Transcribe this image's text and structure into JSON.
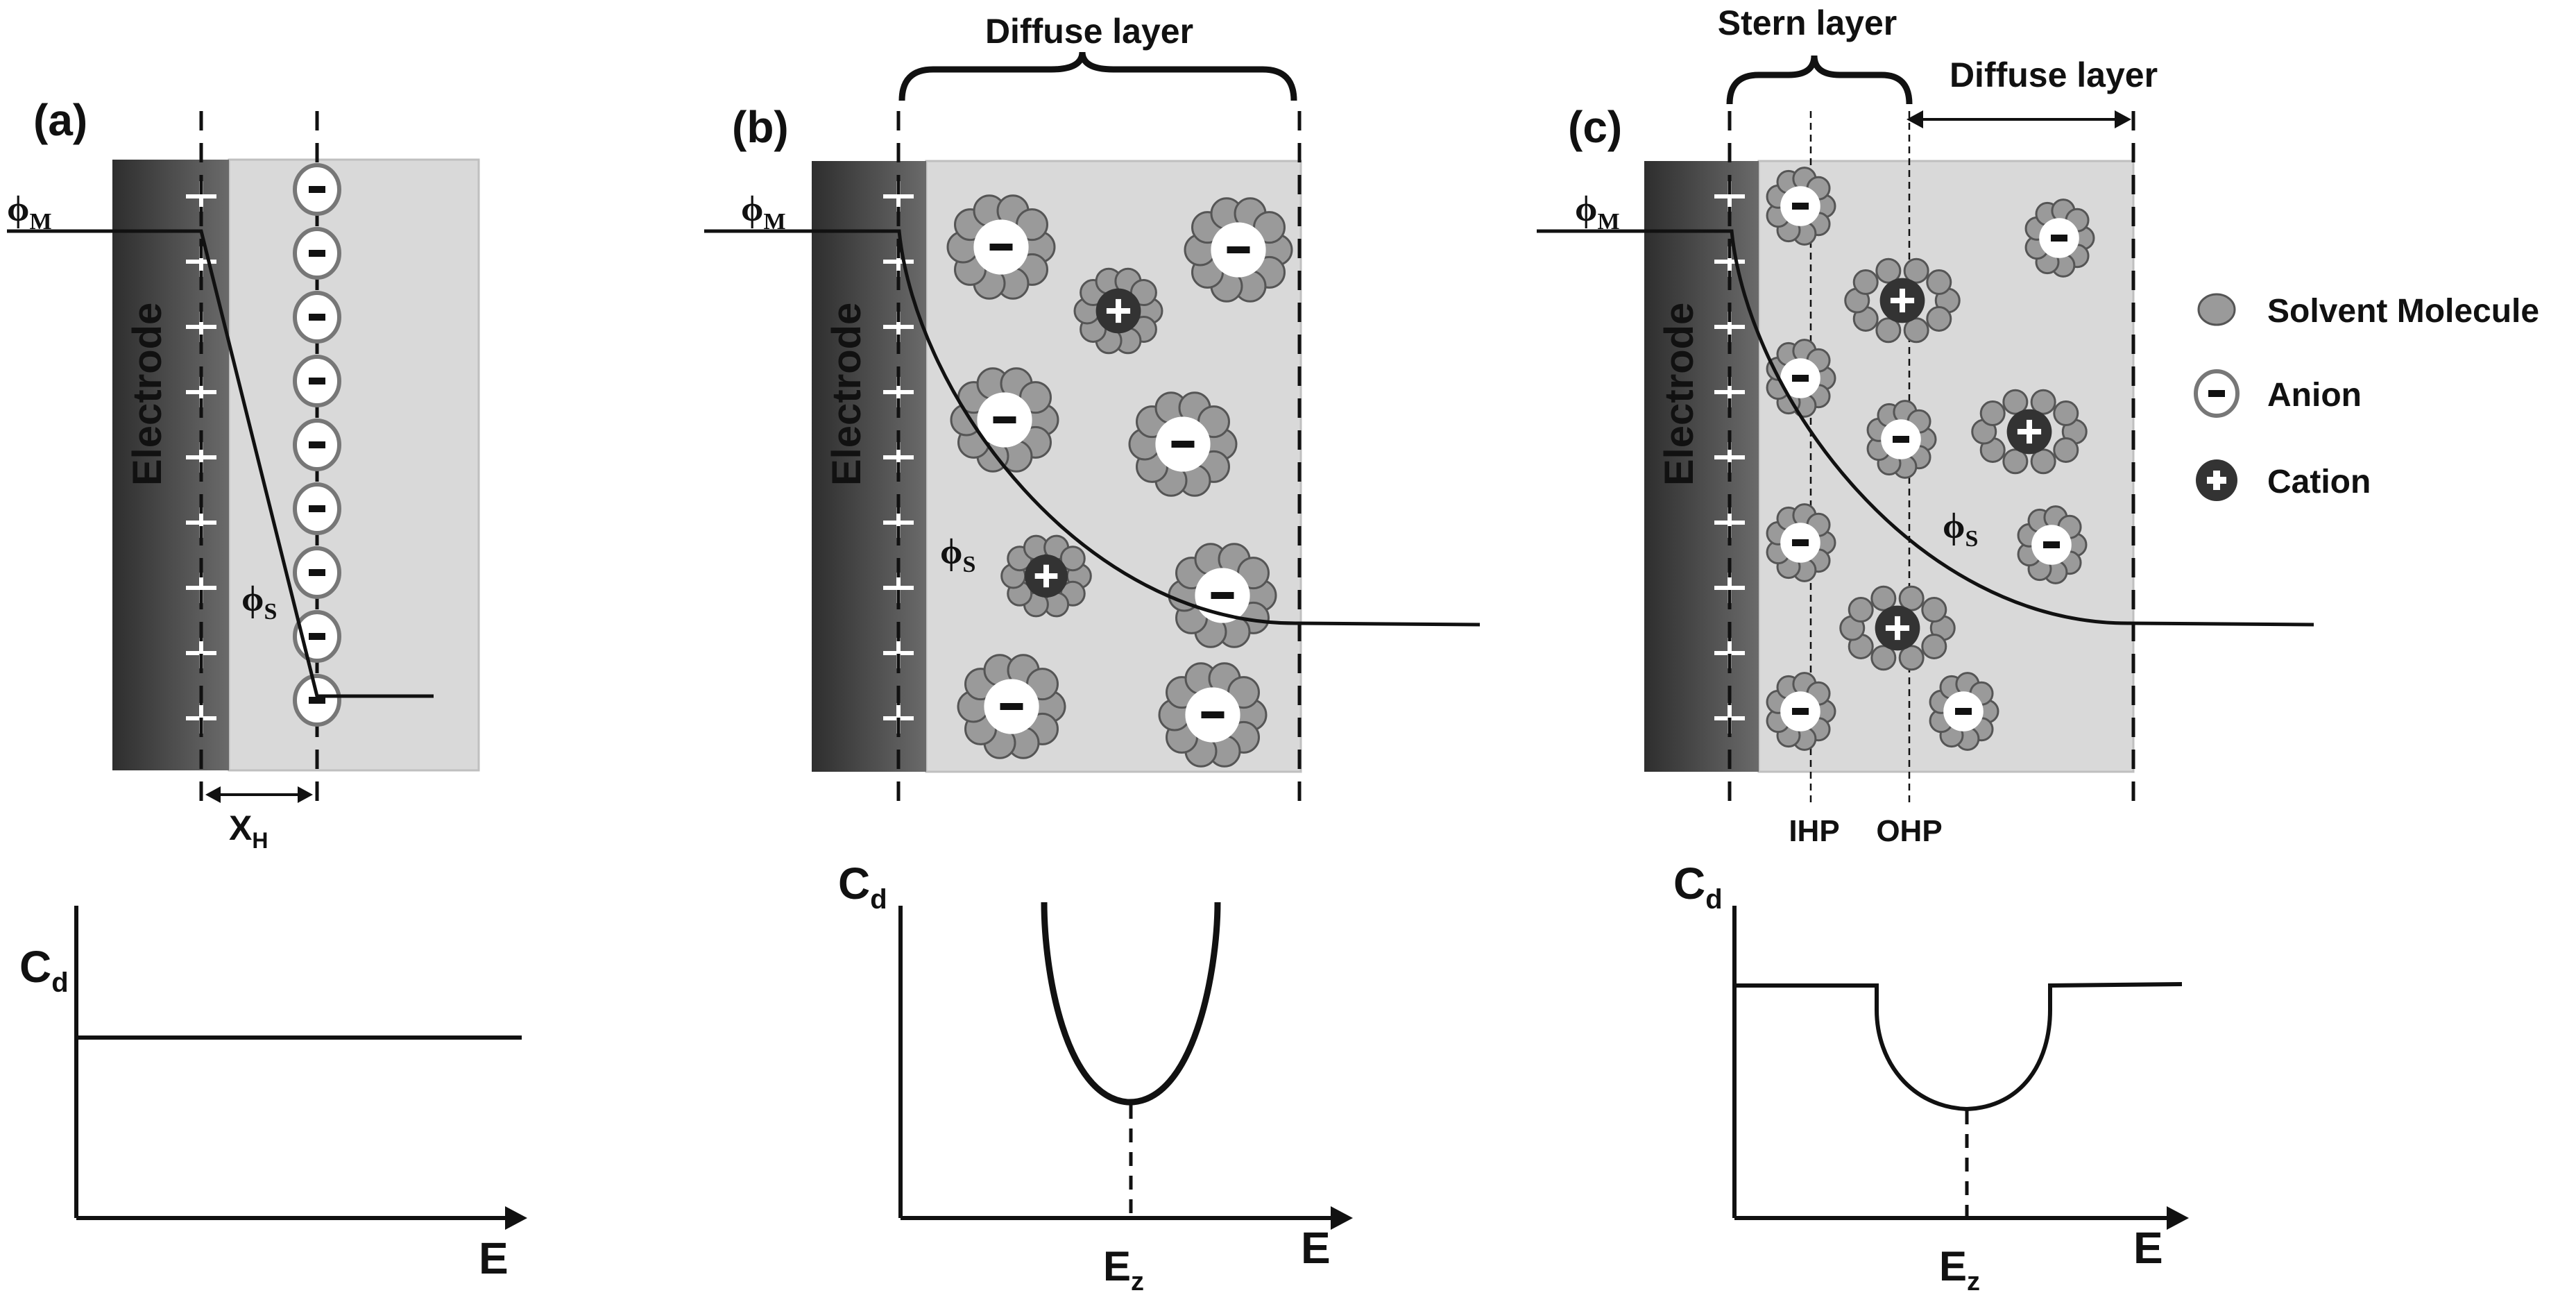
{
  "panels": {
    "a": {
      "label": "(a)",
      "electrode": "Electrode",
      "phi_m": "ϕ",
      "phi_m_sub": "M",
      "phi_s": "ϕ",
      "phi_s_sub": "S",
      "xh": "X",
      "xh_sub": "H",
      "cd": "C",
      "cd_sub": "d",
      "e": "E"
    },
    "b": {
      "label": "(b)",
      "electrode": "Electrode",
      "diffuse": "Diffuse layer",
      "phi_m": "ϕ",
      "phi_m_sub": "M",
      "phi_s": "ϕ",
      "phi_s_sub": "S",
      "cd": "C",
      "cd_sub": "d",
      "e": "E",
      "ez": "E",
      "ez_sub": "z"
    },
    "c": {
      "label": "(c)",
      "electrode": "Electrode",
      "stern": "Stern layer",
      "diffuse": "Diffuse layer",
      "phi_m": "ϕ",
      "phi_m_sub": "M",
      "phi_s": "ϕ",
      "phi_s_sub": "S",
      "ihp": "IHP",
      "ohp": "OHP",
      "cd": "C",
      "cd_sub": "d",
      "e": "E",
      "ez": "E",
      "ez_sub": "z"
    }
  },
  "legend": {
    "solvent": "Solvent Molecule",
    "anion": "Anion",
    "cation": "Cation"
  },
  "colors": {
    "electrode": "#4a4a4a",
    "electrolyte": "#d9d9d9",
    "solvent": "#9a9a9a",
    "line": "#111111"
  }
}
